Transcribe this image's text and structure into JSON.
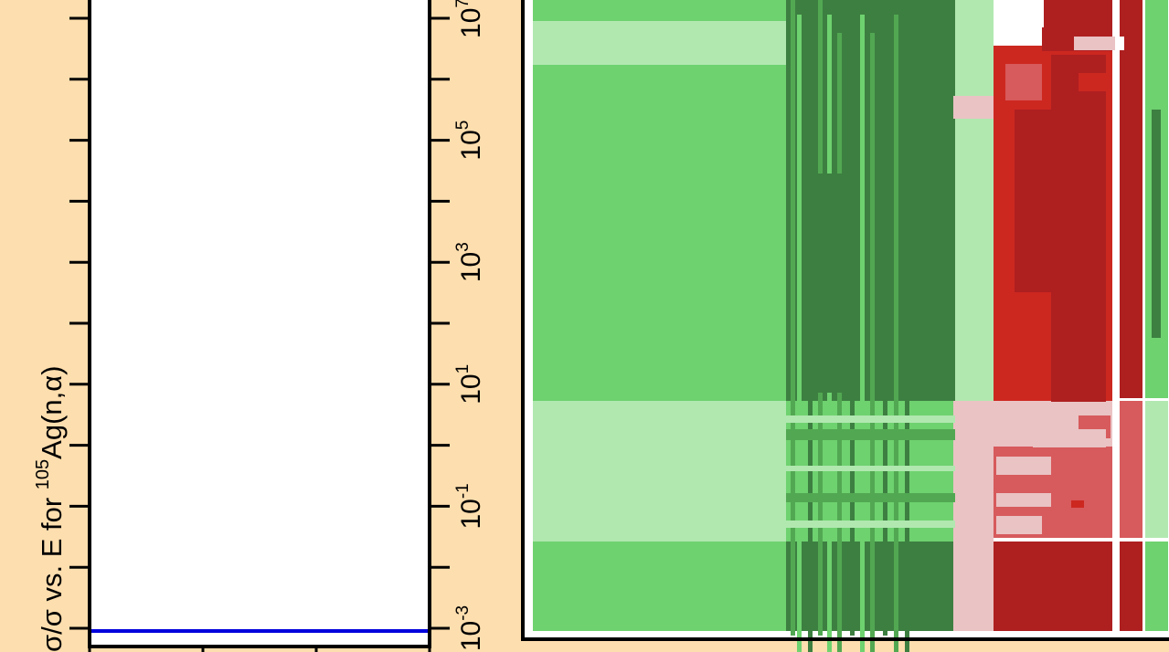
{
  "chart_data": [
    {
      "type": "line",
      "panel": "left",
      "title": "",
      "ylabel_parts": {
        "prefix": "σ/σ vs. E for ",
        "mass": "105",
        "reaction": "Ag(n,α)"
      },
      "series": [
        {
          "values": [
            0,
            0,
            0,
            0
          ],
          "color": "#0000dd"
        }
      ],
      "x_ticks": [
        "",
        "",
        "",
        ""
      ]
    },
    {
      "type": "heatmap",
      "panel": "right",
      "title": "",
      "yscale": "log",
      "y_tick_labels": [
        {
          "base": "10",
          "exp": "7"
        },
        {
          "base": "10",
          "exp": "5"
        },
        {
          "base": "10",
          "exp": "3"
        },
        {
          "base": "10",
          "exp": "1"
        },
        {
          "base": "10",
          "exp": "-1"
        },
        {
          "base": "10",
          "exp": "-3"
        }
      ],
      "y_tick_values": [
        10000000,
        100000,
        1000,
        10,
        0.1,
        0.001
      ],
      "palette": {
        "light_green": "#b1e8b0",
        "mid_green": "#6ed26f",
        "green": "#52a852",
        "dark_green": "#3d7f41",
        "pink": "#eac3c4",
        "rose": "#d75a5c",
        "red": "#cc2820",
        "dark_red": "#ae1f20",
        "white": "#ffffff"
      },
      "colormap": "green (negative) to red (positive) correlation",
      "colorbar": false
    }
  ]
}
